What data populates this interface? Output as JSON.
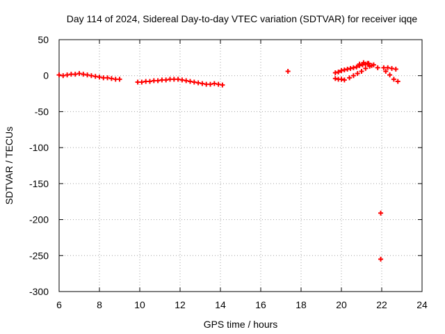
{
  "chart_data": {
    "type": "scatter",
    "title": "Day 114 of 2024, Sidereal Day-to-day VTEC variation (SDTVAR) for receiver iqqe",
    "xlabel": "GPS time / hours",
    "ylabel": "SDTVAR / TECUs",
    "xlim": [
      6,
      24
    ],
    "ylim": [
      -300,
      50
    ],
    "xticks": [
      6,
      8,
      10,
      12,
      14,
      16,
      18,
      20,
      22,
      24
    ],
    "yticks": [
      50,
      0,
      -50,
      -100,
      -150,
      -200,
      -250,
      -300
    ],
    "grid": true,
    "marker": "plus",
    "color": "#ff0000",
    "series": [
      {
        "name": "SDTVAR",
        "x": [
          6.0,
          6.2,
          6.4,
          6.6,
          6.8,
          7.0,
          7.2,
          7.4,
          7.6,
          7.8,
          8.0,
          8.2,
          8.4,
          8.6,
          8.8,
          9.0,
          9.9,
          10.1,
          10.3,
          10.5,
          10.7,
          10.9,
          11.1,
          11.3,
          11.5,
          11.7,
          11.9,
          12.1,
          12.3,
          12.5,
          12.7,
          12.9,
          13.1,
          13.3,
          13.5,
          13.7,
          13.9,
          14.1,
          17.35,
          19.7,
          19.85,
          20.0,
          20.15,
          20.3,
          20.45,
          20.6,
          20.75,
          20.9,
          21.05,
          21.2,
          21.35,
          19.7,
          19.85,
          20.0,
          20.15,
          20.4,
          20.6,
          20.8,
          21.0,
          21.2,
          21.4,
          21.6,
          21.8,
          20.9,
          21.1,
          21.3,
          21.5,
          22.1,
          22.3,
          22.5,
          22.7,
          22.2,
          22.4,
          22.6,
          22.8,
          21.95,
          21.95
        ],
        "y": [
          1,
          0,
          1,
          2,
          2,
          3,
          2,
          1,
          0,
          -1,
          -2,
          -3,
          -3,
          -4,
          -5,
          -5,
          -9,
          -9,
          -8,
          -8,
          -7,
          -7,
          -6,
          -6,
          -5,
          -5,
          -5,
          -6,
          -7,
          -8,
          -9,
          -10,
          -11,
          -12,
          -12,
          -11,
          -12,
          -13,
          6,
          4,
          5,
          7,
          8,
          9,
          10,
          11,
          12,
          14,
          15,
          16,
          17,
          -4,
          -5,
          -5,
          -6,
          -3,
          0,
          3,
          6,
          10,
          13,
          15,
          11,
          16,
          18,
          17,
          14,
          11,
          11,
          10,
          9,
          6,
          1,
          -5,
          -8,
          -191,
          -255
        ]
      }
    ]
  }
}
